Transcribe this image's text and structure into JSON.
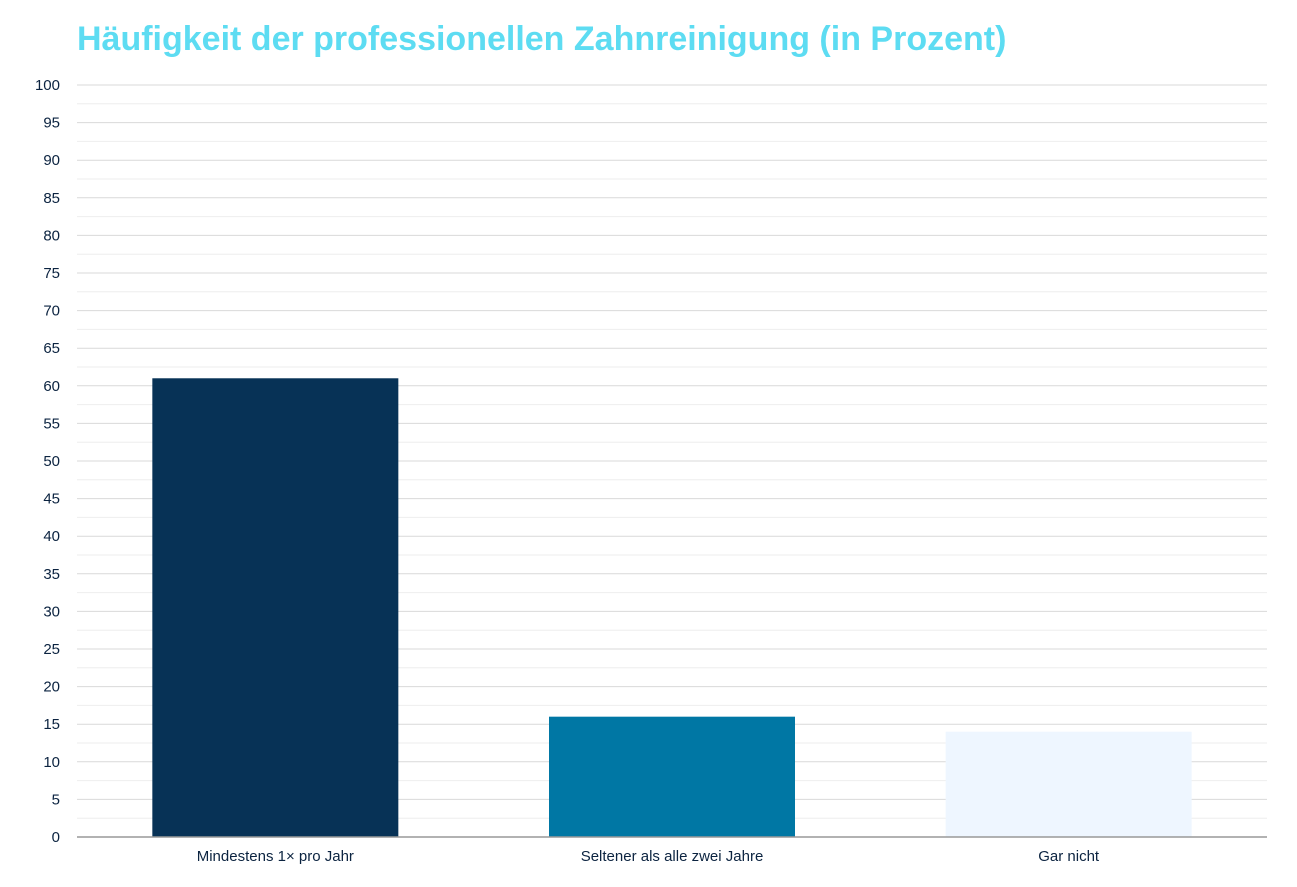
{
  "chart_data": {
    "type": "bar",
    "title": "Häufigkeit der professionellen Zahnreinigung (in Prozent)",
    "xlabel": "",
    "ylabel": "",
    "categories": [
      "Mindestens 1× pro Jahr",
      "Seltener als alle zwei Jahre",
      "Gar nicht"
    ],
    "values": [
      61,
      16,
      14
    ],
    "colors": [
      "#073256",
      "#0077a4",
      "#eef6ff"
    ],
    "ylim": [
      0,
      100
    ],
    "yticks": [
      0,
      5,
      10,
      15,
      20,
      25,
      30,
      35,
      40,
      45,
      50,
      55,
      60,
      65,
      70,
      75,
      80,
      85,
      90,
      95,
      100
    ],
    "grid": true,
    "legend": "none"
  },
  "colors": {
    "title": "#5ddcf2",
    "grid_major": "#d9d9d9",
    "grid_minor": "#eeeeee",
    "axis": "#999999",
    "text": "#0b2340"
  }
}
